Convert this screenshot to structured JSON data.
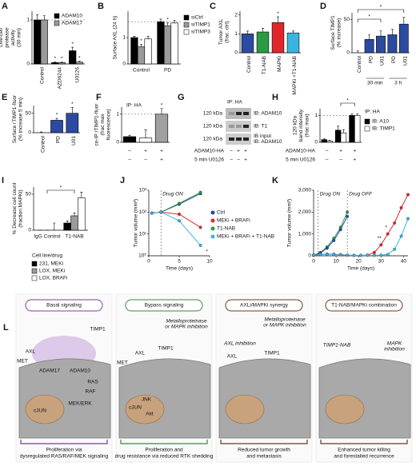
{
  "chart_data": [
    {
      "type": "bar",
      "label": "A",
      "ylabel": [
        "Live-cell",
        "protease",
        "activity",
        "(30 min)"
      ],
      "categories": [
        "Control",
        "AZD6244",
        "U0126"
      ],
      "category_colors": [
        "#000000",
        "#2b4ba0",
        "#2b4ba0"
      ],
      "series": [
        {
          "name": "ADAM10",
          "color": "#000000",
          "values": [
            1.0,
            0.03,
            0.3
          ],
          "errors": [
            0.12,
            0.02,
            0.08
          ],
          "significance": [
            null,
            "*",
            "*"
          ]
        },
        {
          "name": "ADAM17",
          "color": "#9a9a9a",
          "values": [
            1.0,
            0.03,
            0.04
          ],
          "errors": [
            0.1,
            0.02,
            0.02
          ],
          "significance": [
            null,
            "*",
            "*"
          ]
        }
      ],
      "ylim": [
        0,
        1.2
      ],
      "yticks": [
        0,
        1
      ],
      "reference": 1
    },
    {
      "type": "bar",
      "label": "B",
      "ylabel": "Surface AXL (24 h)",
      "categories": [
        "Control",
        "PD"
      ],
      "category_colors": [
        "#000000",
        "#2b4ba0"
      ],
      "series": [
        {
          "name": "siCtrl",
          "color": "#000000",
          "values": [
            1.0,
            1.6
          ],
          "errors": [
            0.05,
            0.1
          ]
        },
        {
          "name": "siTIMP1",
          "color": "#9a9a9a",
          "values": [
            0.65,
            1.45
          ],
          "errors": [
            0.1,
            0.1
          ],
          "significance": [
            "*",
            "*"
          ]
        },
        {
          "name": "siTIMP3",
          "color": "#ffffff",
          "values": [
            0.95,
            1.55
          ],
          "errors": [
            0.1,
            0.1
          ]
        }
      ],
      "ylim": [
        0,
        2
      ],
      "yticks": [
        0,
        1
      ],
      "reference": 1.6
    },
    {
      "type": "bar",
      "label": "C",
      "ylabel": [
        "Tumor AXL",
        "(frac. ctrl)"
      ],
      "categories": [
        "Control",
        "T1-NAB",
        "MAPKi",
        "MAPKi +T1-NAB"
      ],
      "series": [
        {
          "colors": [
            "#2b4ba0",
            "#2a9a45",
            "#e0262b",
            "#3ab5e0"
          ],
          "values": [
            1.0,
            1.1,
            1.6,
            1.05
          ],
          "errors": [
            0.15,
            0.2,
            0.3,
            0.1
          ],
          "significance": [
            null,
            null,
            "*",
            null
          ]
        }
      ],
      "ylim": [
        0,
        2.2
      ],
      "yticks": [
        0,
        1,
        2
      ]
    },
    {
      "type": "bar",
      "label": "D",
      "ylabel": [
        "Surface TIMP1",
        "(% increase)"
      ],
      "categories": [
        "Control",
        "PD",
        "U01",
        "PD",
        "U01"
      ],
      "category_colors": [
        "#000000",
        "#2b4ba0",
        "#2b4ba0",
        "#2b4ba0",
        "#2b4ba0"
      ],
      "series": [
        {
          "colors": [
            "#ffffff",
            "#2b4ba0",
            "#2b4ba0",
            "#2b4ba0",
            "#2b4ba0"
          ],
          "values": [
            0,
            20,
            25,
            27,
            43
          ],
          "errors": [
            3,
            7,
            8,
            8,
            10
          ]
        }
      ],
      "ylim": [
        0,
        60
      ],
      "yticks": [
        0,
        50
      ],
      "groups": [
        "30 min",
        "3 h"
      ],
      "brackets": [
        "*",
        "*"
      ]
    },
    {
      "type": "bar",
      "label": "E",
      "ylabel": [
        "Surface rTIMP1-fluor",
        "(% increase 5 min)"
      ],
      "categories": [
        "Control",
        "PD",
        "U01"
      ],
      "category_colors": [
        "#000000",
        "#2b4ba0",
        "#2b4ba0"
      ],
      "series": [
        {
          "colors": [
            "#ffffff",
            "#2b4ba0",
            "#2b4ba0"
          ],
          "values": [
            0,
            32,
            50
          ],
          "errors": [
            2,
            5,
            15
          ],
          "significance": [
            null,
            "*",
            "*"
          ]
        }
      ],
      "ylim": [
        0,
        70
      ],
      "yticks": [
        0,
        50
      ]
    },
    {
      "type": "bar",
      "label": "F",
      "header": "IP: HA",
      "ylabel": [
        "co-IP rTIMP1-fluor",
        "(frac max",
        "fluorescence)"
      ],
      "series": [
        {
          "colors": [
            "#000000",
            "#ffffff",
            "#a0a0a0"
          ],
          "values": [
            0.2,
            0.15,
            1.0
          ],
          "errors": [
            0.05,
            0.3,
            0.2
          ],
          "significance": [
            null,
            null,
            "*"
          ]
        }
      ],
      "conditions": [
        {
          "values": [
            "–",
            "+",
            "+"
          ]
        },
        {
          "values": [
            "–",
            "–",
            "+"
          ]
        }
      ],
      "ylim": [
        0,
        1.25
      ],
      "yticks": [
        0,
        1
      ],
      "reference": 1
    },
    {
      "type": "bar",
      "label": "H",
      "header": "IP: HA",
      "ylabel": [
        "120 kDa",
        "band intensity",
        "(frac max)"
      ],
      "series": [
        {
          "name": "IB: A10",
          "color": "#000000",
          "values": [
            0.1,
            0.45,
            1.0
          ],
          "errors": [
            0.03,
            0.15,
            0.05
          ]
        },
        {
          "name": "IB: TIMP1",
          "color": "#ffffff",
          "values": [
            0.05,
            0.35,
            1.0
          ],
          "errors": [
            0.02,
            0.12,
            0.05
          ]
        }
      ],
      "conditions": [
        {
          "name": "ADAM10-HA",
          "values": [
            "–",
            "+",
            "+"
          ]
        },
        {
          "name": "5 min U0126",
          "values": [
            "–",
            "–",
            "+"
          ]
        }
      ],
      "ylim": [
        0,
        1.25
      ],
      "yticks": [
        0,
        1
      ],
      "reference": 1,
      "brackets": [
        "*"
      ]
    },
    {
      "type": "bar",
      "label": "I",
      "ylabel": [
        "% Decrease cell count",
        "(fraction MAPKi)"
      ],
      "categories": [
        "IgG Control",
        "T1-NAB"
      ],
      "series": [
        {
          "name": "231, MEKi",
          "color": "#000000",
          "values": [
            0,
            10
          ],
          "errors": [
            0,
            3
          ]
        },
        {
          "name": "LOX, MEKi",
          "color": "#9a9a9a",
          "values": [
            0,
            20
          ],
          "errors": [
            0,
            4
          ]
        },
        {
          "name": "LOX, BRAFi",
          "color": "#ffffff",
          "values": [
            0,
            45
          ],
          "errors": [
            10,
            8
          ]
        }
      ],
      "legend_title": "Cell line/drug",
      "ylim": [
        0,
        60
      ],
      "yticks": [
        0,
        50
      ],
      "brackets": [
        "*"
      ]
    },
    {
      "type": "line",
      "label": "J",
      "log": true,
      "ylabel": "Tumor volume (mm³)",
      "xlabel": "Time (days)",
      "x": [
        0.5,
        2,
        5,
        8.5
      ],
      "xlim": [
        0,
        10
      ],
      "xticks": [
        0,
        5,
        10
      ],
      "ylim": [
        1,
        1000
      ],
      "yticks": [
        {
          "value": 1,
          "label": "10⁰"
        },
        {
          "value": 10,
          "label": "10¹"
        },
        {
          "value": 100,
          "label": "10²"
        },
        {
          "value": 1000,
          "label": "10³"
        }
      ],
      "events": [
        {
          "label": "Drug ON",
          "x": 2
        }
      ],
      "series": [
        {
          "name": "Ctrl",
          "color": "#2b4ba0",
          "values": [
            90,
            100,
            230,
            700
          ]
        },
        {
          "name": "MEKi + BRAFi",
          "color": "#e0262b",
          "values": [
            90,
            100,
            80,
            20
          ]
        },
        {
          "name": "T1-NAB",
          "color": "#2a9a45",
          "values": [
            90,
            100,
            250,
            800
          ]
        },
        {
          "name": "MEKi + BRAFi + T1-NAB",
          "color": "#3ab5e0",
          "values": [
            90,
            100,
            40,
            3
          ],
          "significance": [
            null,
            null,
            null,
            "*"
          ]
        }
      ]
    },
    {
      "type": "line",
      "label": "K",
      "ylabel": "Tumor volume (mm³)",
      "xlabel": "Time (days)",
      "x": [
        0,
        3,
        6,
        9,
        12,
        15,
        18,
        21,
        24,
        27,
        30,
        33,
        36,
        39,
        42
      ],
      "xlim": [
        0,
        42
      ],
      "xticks": [
        0,
        10,
        20,
        30,
        40
      ],
      "ylim": [
        0,
        3000
      ],
      "yticks": [
        0,
        {
          "value": 1000,
          "label": "1,000"
        },
        {
          "value": 2000,
          "label": "2,000"
        },
        {
          "value": 3000,
          "label": "3,000"
        }
      ],
      "events": [
        {
          "label": "Drug ON",
          "x": 2
        },
        {
          "label": "Drug OFF",
          "x": 15
        }
      ],
      "series": [
        {
          "color": "#2a9a45",
          "values": [
            30,
            150,
            400,
            800,
            1300,
            2000,
            null,
            null,
            null,
            null,
            null,
            null,
            null,
            null,
            null
          ]
        },
        {
          "color": "#2b4ba0",
          "values": [
            30,
            120,
            350,
            700,
            1200,
            1800,
            null,
            null,
            null,
            null,
            null,
            null,
            null,
            null,
            null
          ]
        },
        {
          "color": "#e0262b",
          "values": [
            30,
            60,
            80,
            70,
            50,
            30,
            20,
            20,
            30,
            150,
            500,
            1000,
            1500,
            2200,
            2800
          ],
          "significance": [
            null,
            null,
            null,
            null,
            null,
            null,
            null,
            null,
            null,
            null,
            "**",
            "*",
            null,
            null,
            null
          ]
        },
        {
          "color": "#3ab5e0",
          "values": [
            30,
            60,
            70,
            60,
            40,
            30,
            20,
            20,
            20,
            20,
            30,
            60,
            300,
            900,
            1700
          ]
        }
      ]
    }
  ],
  "blot": {
    "label": "G",
    "header": "IP: HA",
    "rows": [
      {
        "size": "120 kDa",
        "probe": [
          "IB: ADAM10"
        ]
      },
      {
        "size": "120 kDa",
        "probe": [
          "IB: T1"
        ]
      },
      {
        "size": "120 kDa",
        "probe": [
          "IB input",
          "IB: ADAM10"
        ]
      }
    ],
    "conditions": [
      {
        "name": "ADAM10-HA",
        "values": [
          "–",
          "+",
          "+"
        ]
      },
      {
        "name": "5 min U0126",
        "values": [
          "–",
          "–",
          "+"
        ]
      }
    ]
  },
  "diagram": {
    "label": "L",
    "panels": [
      {
        "title": "Basal signaling",
        "color": "#7b3f98",
        "labels": [
          "TIMP1",
          "AXL",
          "MET",
          "ADAM17",
          "ADAM10",
          "RAS",
          "RAF",
          "MEK/ERK",
          "cJUN"
        ],
        "caption": [
          "Proliferation via",
          "dysregulated RAS/RAF/MEK signaling"
        ]
      },
      {
        "title": "Bypass signaling",
        "color": "#3a8a3a",
        "notes": [
          [
            "Metalloproteinase",
            "or MAPK inhibition"
          ]
        ],
        "labels": [
          "TIMP1",
          "AXL",
          "MET",
          "JNK",
          "Akt",
          "cJUN"
        ],
        "caption": [
          "Proliferation and",
          "drug resistance via reduced RTK shedding"
        ]
      },
      {
        "title": "AXLi/MAPKi synergy",
        "color": "#6b3a1f",
        "notes": [
          [
            "Metalloproteinase",
            "or MAPK inhibition"
          ],
          [
            "AXL inhibition"
          ]
        ],
        "labels": [
          "AXL",
          "TIMP1"
        ],
        "caption": [
          "Reduced tumor growth",
          "and metastasis"
        ]
      },
      {
        "title": "T1-NAB/MAPKi combination",
        "color": "#6b3a1f",
        "notes": [
          [
            "TIMP1-NAB"
          ],
          [
            "MAPK",
            "inhibition"
          ]
        ],
        "caption": [
          "Enhanced tumor killing",
          "and forestalled recurrence"
        ]
      }
    ]
  }
}
